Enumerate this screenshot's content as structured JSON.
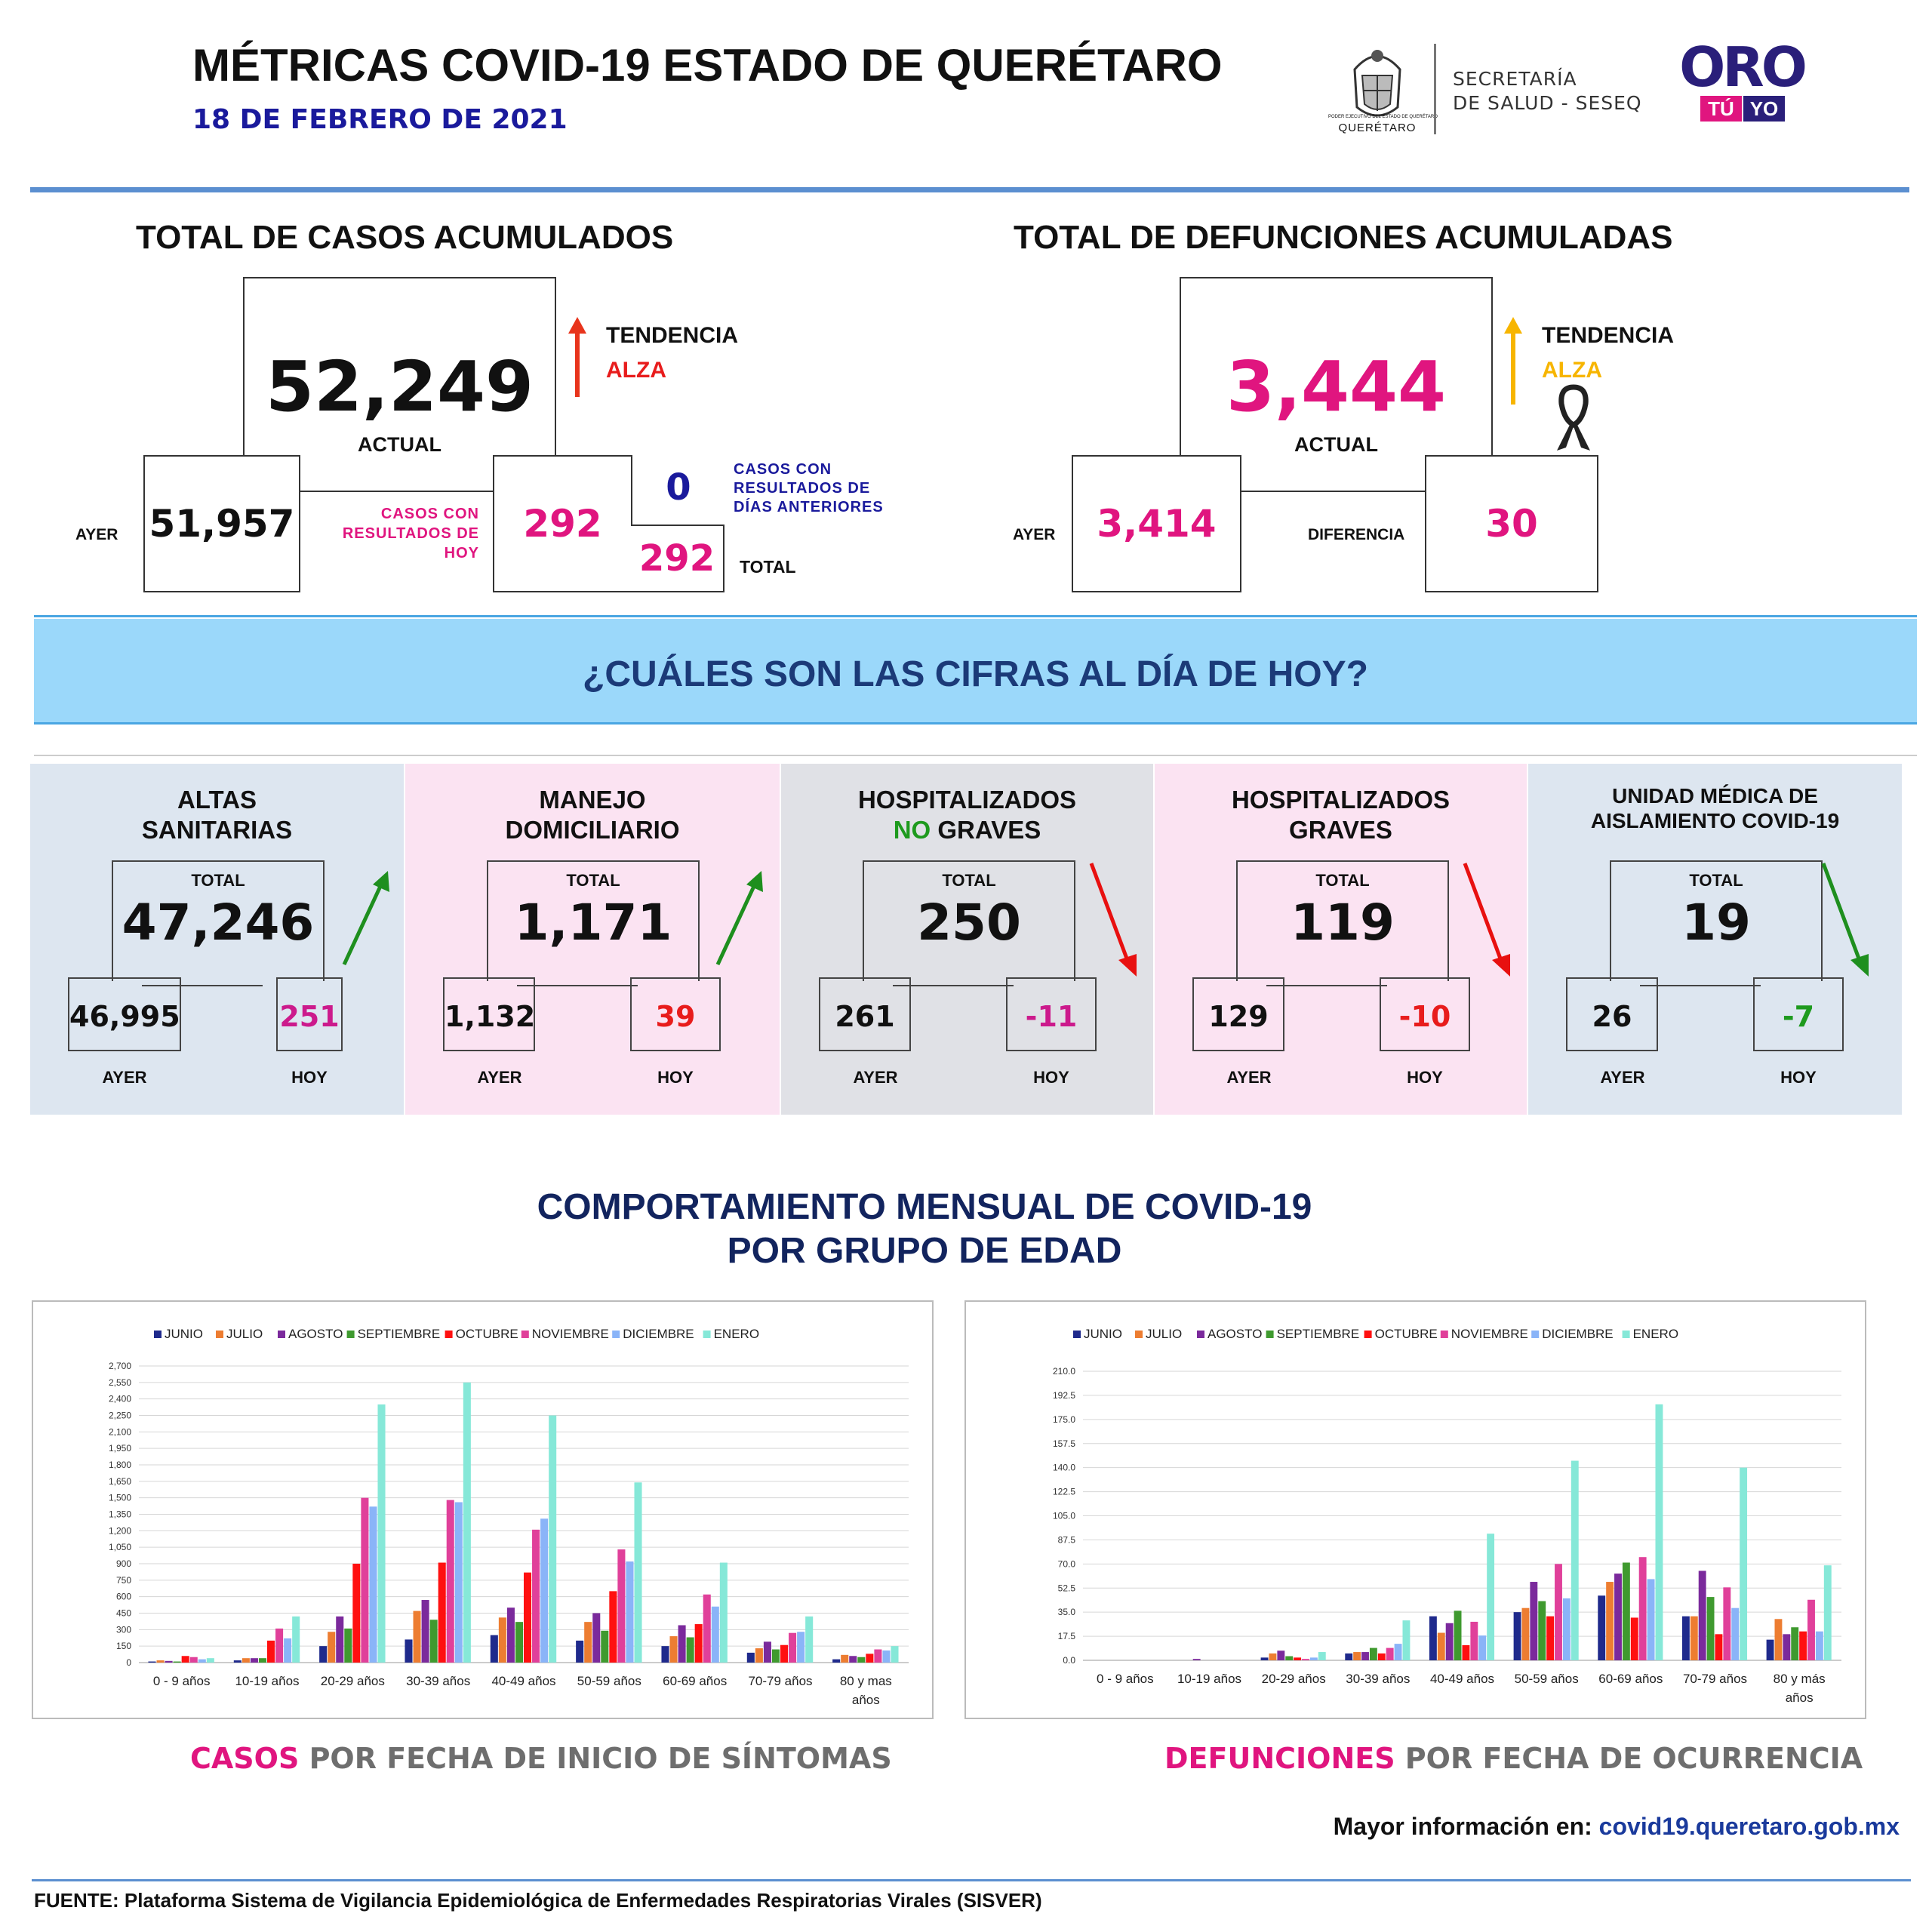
{
  "header": {
    "title": "MÉTRICAS COVID-19 ESTADO DE QUERÉTARO",
    "date": "18 DE FEBRERO DE 2021",
    "gov_logo_text": "PODER EJECUTIVO DEL ESTADO DE QUERÉTARO",
    "gov_logo_label": "QUERÉTARO",
    "secretaria_line1": "SECRETARÍA",
    "secretaria_line2": "DE SALUD - SESEQ",
    "oro_logo": "ORO",
    "tu": "TÚ",
    "yo": "YO"
  },
  "casos": {
    "title": "TOTAL DE CASOS ACUMULADOS",
    "actual": "52,249",
    "actual_label": "ACTUAL",
    "ayer_label": "AYER",
    "ayer": "51,957",
    "hoy_label_1": "CASOS CON",
    "hoy_label_2": "RESULTADOS DE",
    "hoy_label_3": "HOY",
    "hoy": "292",
    "dias_ant": "0",
    "dias_label_1": "CASOS CON",
    "dias_label_2": "RESULTADOS DE",
    "dias_label_3": "DÍAS ANTERIORES",
    "total": "292",
    "total_label": "TOTAL",
    "tendencia_label": "TENDENCIA",
    "tendencia": "ALZA",
    "colors": {
      "arrow": "#e8341c",
      "trend": "#e81c1c"
    }
  },
  "defunciones": {
    "title": "TOTAL DE DEFUNCIONES ACUMULADAS",
    "actual": "3,444",
    "actual_label": "ACTUAL",
    "ayer_label": "AYER",
    "ayer": "3,414",
    "diferencia_label": "DIFERENCIA",
    "diferencia": "30",
    "tendencia_label": "TENDENCIA",
    "tendencia": "ALZA",
    "colors": {
      "arrow": "#f7b500",
      "trend": "#f7b500"
    }
  },
  "banner": "¿CUÁLES SON LAS CIFRAS AL DÍA DE HOY?",
  "panels": [
    {
      "t1": "ALTAS",
      "t2": "SANITARIAS",
      "total_label": "TOTAL",
      "total": "47,246",
      "ayer": "46,995",
      "hoy": "251",
      "ayer_label": "AYER",
      "hoy_label": "HOY",
      "trend": "up",
      "bg": "#dde6f0",
      "hoy_color": "#cc1a8c"
    },
    {
      "t1": "MANEJO",
      "t2": "DOMICILIARIO",
      "total_label": "TOTAL",
      "total": "1,171",
      "ayer": "1,132",
      "hoy": "39",
      "ayer_label": "AYER",
      "hoy_label": "HOY",
      "trend": "up",
      "bg": "#fbe3f2",
      "hoy_color": "#e81c1c"
    },
    {
      "t1": "HOSPITALIZADOS",
      "t2a": "NO",
      "t2b": " GRAVES",
      "total_label": "TOTAL",
      "total": "250",
      "ayer": "261",
      "hoy": "-11",
      "ayer_label": "AYER",
      "hoy_label": "HOY",
      "trend": "down",
      "bg": "#e0e1e6",
      "hoy_color": "#cc1a8c"
    },
    {
      "t1": "HOSPITALIZADOS",
      "t2": "GRAVES",
      "total_label": "TOTAL",
      "total": "119",
      "ayer": "129",
      "hoy": "-10",
      "ayer_label": "AYER",
      "hoy_label": "HOY",
      "trend": "down",
      "bg": "#fbe3f2",
      "hoy_color": "#e81c1c"
    },
    {
      "t1": "UNIDAD MÉDICA DE",
      "t2": "AISLAMIENTO COVID-19",
      "total_label": "TOTAL",
      "total": "19",
      "ayer": "26",
      "hoy": "-7",
      "ayer_label": "AYER",
      "hoy_label": "HOY",
      "trend": "down_green",
      "bg": "#dde6f0",
      "hoy_color": "#1e9a1e"
    }
  ],
  "chart_section": {
    "title_1": "COMPORTAMIENTO MENSUAL DE COVID-19",
    "title_2": "POR GRUPO DE EDAD",
    "caption_left_a": "CASOS",
    "caption_left_b": " POR FECHA DE INICIO DE SÍNTOMAS",
    "caption_right_a": "DEFUNCIONES",
    "caption_right_b": " POR FECHA DE OCURRENCIA"
  },
  "footer": {
    "info_label": "Mayor información en: ",
    "info_url": "covid19.queretaro.gob.mx",
    "fuente": "FUENTE: Plataforma Sistema  de Vigilancia Epidemiológica de Enfermedades Respiratorias Virales (SISVER)"
  },
  "chart_data": [
    {
      "type": "bar",
      "series_colors": [
        "#1f2a8c",
        "#ed7d31",
        "#7b2a9c",
        "#3f9a2f",
        "#ff1010",
        "#e0409a",
        "#8ab4f8",
        "#86e8d8"
      ],
      "categories": [
        "0 - 9 años",
        "10-19 años",
        "20-29 años",
        "30-39 años",
        "40-49 años",
        "50-59 años",
        "60-69 años",
        "70-79 años",
        "80 y mas años"
      ],
      "yticks": [
        "0",
        "150",
        "300",
        "450",
        "600",
        "750",
        "900",
        "1,050",
        "1,200",
        "1,350",
        "1,500",
        "1,650",
        "1,800",
        "1,950",
        "2,100",
        "2,250",
        "2,400",
        "2,550",
        "2,700"
      ],
      "ylim": [
        0,
        2700
      ],
      "series": [
        {
          "name": "JUNIO",
          "values": [
            10,
            20,
            150,
            210,
            250,
            200,
            150,
            90,
            30
          ]
        },
        {
          "name": "JULIO",
          "values": [
            20,
            40,
            280,
            470,
            410,
            370,
            240,
            130,
            70
          ]
        },
        {
          "name": "AGOSTO",
          "values": [
            15,
            40,
            420,
            570,
            500,
            450,
            340,
            190,
            60
          ]
        },
        {
          "name": "SEPTIEMBRE",
          "values": [
            10,
            40,
            310,
            390,
            370,
            290,
            230,
            120,
            50
          ]
        },
        {
          "name": "OCTUBRE",
          "values": [
            60,
            200,
            900,
            910,
            820,
            650,
            350,
            160,
            80
          ]
        },
        {
          "name": "NOVIEMBRE",
          "values": [
            50,
            310,
            1500,
            1480,
            1210,
            1030,
            620,
            270,
            120
          ]
        },
        {
          "name": "DICIEMBRE",
          "values": [
            30,
            220,
            1420,
            1460,
            1310,
            920,
            510,
            280,
            110
          ]
        },
        {
          "name": "ENERO",
          "values": [
            40,
            420,
            2350,
            2550,
            2250,
            1640,
            910,
            420,
            150
          ]
        }
      ]
    },
    {
      "type": "bar",
      "series_colors": [
        "#1f2a8c",
        "#ed7d31",
        "#7b2a9c",
        "#3f9a2f",
        "#ff1010",
        "#e0409a",
        "#8ab4f8",
        "#86e8d8"
      ],
      "categories": [
        "0 - 9 años",
        "10-19 años",
        "20-29 años",
        "30-39 años",
        "40-49 años",
        "50-59 años",
        "60-69 años",
        "70-79 años",
        "80 y más años"
      ],
      "yticks": [
        "0.0",
        "17.5",
        "35.0",
        "52.5",
        "70.0",
        "87.5",
        "105.0",
        "122.5",
        "140.0",
        "157.5",
        "175.0",
        "192.5",
        "210.0"
      ],
      "ylim": [
        0,
        210
      ],
      "series": [
        {
          "name": "JUNIO",
          "values": [
            0,
            0,
            2,
            5,
            32,
            35,
            47,
            32,
            15
          ]
        },
        {
          "name": "JULIO",
          "values": [
            0,
            0,
            5,
            6,
            20,
            38,
            57,
            32,
            30
          ]
        },
        {
          "name": "AGOSTO",
          "values": [
            0,
            1,
            7,
            6,
            27,
            57,
            63,
            65,
            19
          ]
        },
        {
          "name": "SEPTIEMBRE",
          "values": [
            0,
            0,
            3,
            9,
            36,
            43,
            71,
            46,
            24
          ]
        },
        {
          "name": "OCTUBRE",
          "values": [
            0,
            0,
            2,
            5,
            11,
            32,
            31,
            19,
            21
          ]
        },
        {
          "name": "NOVIEMBRE",
          "values": [
            0,
            0,
            1,
            9,
            28,
            70,
            75,
            53,
            44
          ]
        },
        {
          "name": "DICIEMBRE",
          "values": [
            0,
            0,
            2,
            12,
            18,
            45,
            59,
            38,
            21
          ]
        },
        {
          "name": "ENERO",
          "values": [
            0,
            0,
            6,
            29,
            92,
            145,
            186,
            140,
            69
          ]
        }
      ]
    }
  ]
}
